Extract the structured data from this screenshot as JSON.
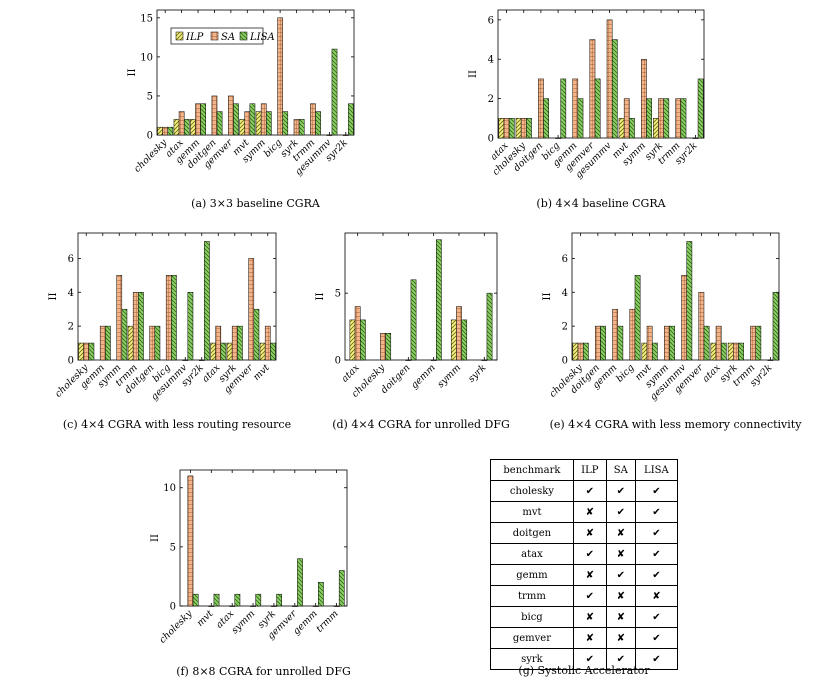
{
  "chart_data": [
    {
      "type": "bar",
      "caption": "(a) 3×3 baseline CGRA",
      "ylabel": "II",
      "ylim": [
        0,
        16
      ],
      "yticks": [
        0,
        5,
        10,
        15
      ],
      "legend_position": "top-left",
      "categories": [
        "cholesky",
        "atax",
        "gemm",
        "doitgen",
        "gemver",
        "mvt",
        "symm",
        "bicg",
        "syrk",
        "trmm",
        "gesummv",
        "syr2k"
      ],
      "series": [
        {
          "name": "ILP",
          "color": "#f4ef8a",
          "values": [
            1,
            2,
            2,
            null,
            null,
            2,
            3,
            null,
            null,
            null,
            null,
            null
          ]
        },
        {
          "name": "SA",
          "color": "#f2b48a",
          "values": [
            1,
            3,
            4,
            5,
            5,
            3,
            4,
            15,
            2,
            4,
            0,
            0
          ]
        },
        {
          "name": "LISA",
          "color": "#8fcf6a",
          "values": [
            1,
            2,
            4,
            3,
            4,
            4,
            3,
            3,
            2,
            3,
            11,
            4
          ]
        }
      ]
    },
    {
      "type": "bar",
      "caption": "(b) 4×4 baseline CGRA",
      "ylabel": "II",
      "ylim": [
        0,
        6.5
      ],
      "yticks": [
        0,
        2,
        4,
        6
      ],
      "categories": [
        "atax",
        "cholesky",
        "doitgen",
        "bicg",
        "gemm",
        "gemver",
        "gesummv",
        "mvt",
        "symm",
        "syrk",
        "trmm",
        "syr2k"
      ],
      "series": [
        {
          "name": "ILP",
          "color": "#f4ef8a",
          "values": [
            1,
            1,
            null,
            null,
            null,
            null,
            null,
            1,
            null,
            1,
            null,
            null
          ]
        },
        {
          "name": "SA",
          "color": "#f2b48a",
          "values": [
            1,
            1,
            3,
            0,
            3,
            5,
            6,
            2,
            4,
            2,
            2,
            0
          ]
        },
        {
          "name": "LISA",
          "color": "#8fcf6a",
          "values": [
            1,
            1,
            2,
            3,
            2,
            3,
            5,
            1,
            2,
            2,
            2,
            3
          ]
        }
      ]
    },
    {
      "type": "bar",
      "caption": "(c) 4×4 CGRA with less routing resource",
      "ylabel": "II",
      "ylim": [
        0,
        7.5
      ],
      "yticks": [
        0,
        2,
        4,
        6
      ],
      "categories": [
        "cholesky",
        "gemm",
        "symm",
        "trmm",
        "doitgen",
        "bicg",
        "gesummv",
        "syr2k",
        "atax",
        "syrk",
        "gemver",
        "mvt"
      ],
      "series": [
        {
          "name": "ILP",
          "color": "#f4ef8a",
          "values": [
            1,
            null,
            null,
            2,
            null,
            null,
            null,
            null,
            1,
            1,
            null,
            1
          ]
        },
        {
          "name": "SA",
          "color": "#f2b48a",
          "values": [
            1,
            2,
            5,
            4,
            2,
            5,
            0,
            0,
            2,
            2,
            6,
            2
          ]
        },
        {
          "name": "LISA",
          "color": "#8fcf6a",
          "values": [
            1,
            2,
            3,
            4,
            2,
            5,
            4,
            7,
            1,
            2,
            3,
            1
          ]
        }
      ]
    },
    {
      "type": "bar",
      "caption": "(d) 4×4 CGRA for unrolled DFG",
      "ylabel": "II",
      "ylim": [
        0,
        9.5
      ],
      "yticks": [
        0,
        5
      ],
      "categories": [
        "atax",
        "cholesky",
        "doitgen",
        "gemm",
        "symm",
        "syrk"
      ],
      "series": [
        {
          "name": "ILP",
          "color": "#f4ef8a",
          "values": [
            3,
            null,
            null,
            null,
            3,
            null
          ]
        },
        {
          "name": "SA",
          "color": "#f2b48a",
          "values": [
            4,
            2,
            0,
            0,
            4,
            0
          ]
        },
        {
          "name": "LISA",
          "color": "#8fcf6a",
          "values": [
            3,
            2,
            6,
            9,
            3,
            5
          ]
        }
      ]
    },
    {
      "type": "bar",
      "caption": "(e) 4×4 CGRA with less memory connectivity",
      "ylabel": "II",
      "ylim": [
        0,
        7.5
      ],
      "yticks": [
        0,
        2,
        4,
        6
      ],
      "categories": [
        "cholesky",
        "doitgen",
        "gemm",
        "bicg",
        "mvt",
        "symm",
        "gesummv",
        "gemver",
        "atax",
        "syrk",
        "trmm",
        "syr2k"
      ],
      "series": [
        {
          "name": "ILP",
          "color": "#f4ef8a",
          "values": [
            1,
            null,
            null,
            null,
            1,
            null,
            null,
            null,
            1,
            1,
            null,
            null
          ]
        },
        {
          "name": "SA",
          "color": "#f2b48a",
          "values": [
            1,
            2,
            3,
            3,
            2,
            2,
            5,
            4,
            2,
            1,
            2,
            0
          ]
        },
        {
          "name": "LISA",
          "color": "#8fcf6a",
          "values": [
            1,
            2,
            2,
            5,
            1,
            2,
            7,
            2,
            1,
            1,
            2,
            4
          ]
        }
      ]
    },
    {
      "type": "bar",
      "caption": "(f) 8×8 CGRA for unrolled DFG",
      "ylabel": "II",
      "ylim": [
        0,
        11.5
      ],
      "yticks": [
        0,
        5,
        10
      ],
      "categories": [
        "cholesky",
        "mvt",
        "atax",
        "symm",
        "syrk",
        "gemver",
        "gemm",
        "trmm"
      ],
      "series": [
        {
          "name": "ILP",
          "color": "#f4ef8a",
          "values": [
            null,
            null,
            null,
            null,
            null,
            null,
            null,
            null
          ]
        },
        {
          "name": "SA",
          "color": "#f2b48a",
          "values": [
            11,
            0,
            0,
            0,
            0,
            0,
            0,
            0
          ]
        },
        {
          "name": "LISA",
          "color": "#8fcf6a",
          "values": [
            1,
            1,
            1,
            1,
            1,
            4,
            2,
            3
          ]
        }
      ]
    }
  ],
  "table": {
    "caption": "(g) Systolic Accelerator",
    "headers": [
      "benchmark",
      "ILP",
      "SA",
      "LISA"
    ],
    "rows": [
      [
        "cholesky",
        "✔",
        "✔",
        "✔"
      ],
      [
        "mvt",
        "✘",
        "✔",
        "✔"
      ],
      [
        "doitgen",
        "✘",
        "✘",
        "✔"
      ],
      [
        "atax",
        "✔",
        "✘",
        "✔"
      ],
      [
        "gemm",
        "✘",
        "✔",
        "✔"
      ],
      [
        "trmm",
        "✔",
        "✘",
        "✘"
      ],
      [
        "bicg",
        "✘",
        "✘",
        "✔"
      ],
      [
        "gemver",
        "✘",
        "✘",
        "✔"
      ],
      [
        "syrk",
        "✔",
        "✔",
        "✔"
      ]
    ]
  }
}
